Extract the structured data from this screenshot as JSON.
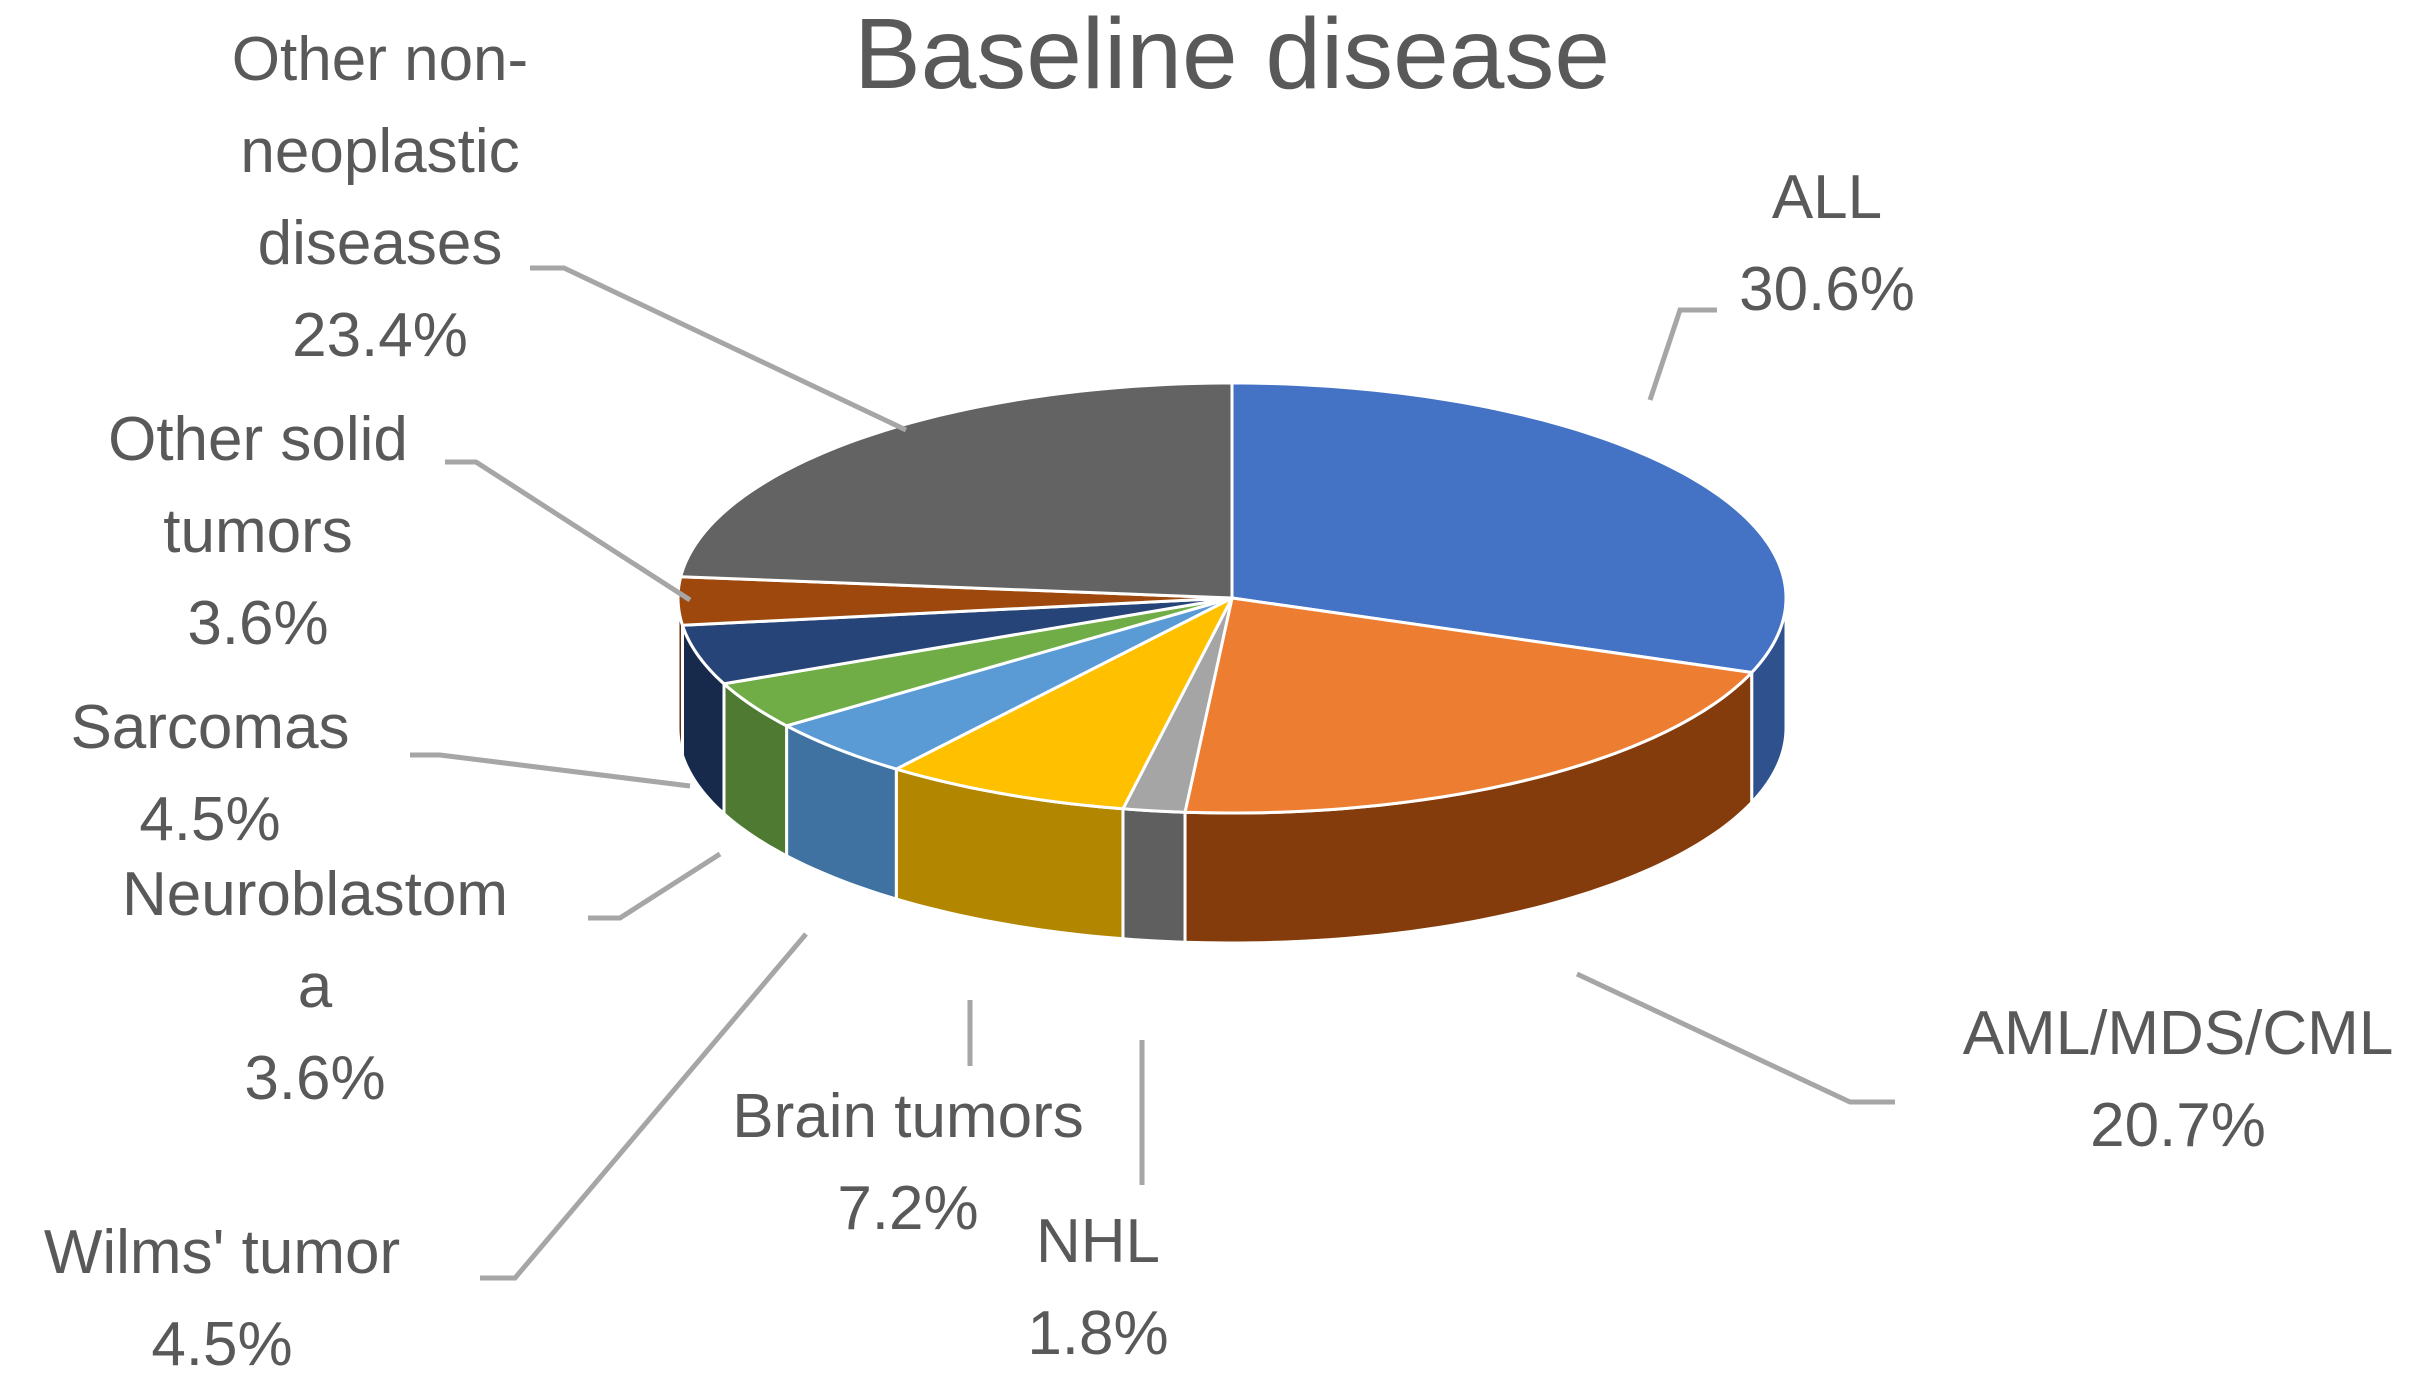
{
  "chart_data": {
    "type": "pie",
    "title": "Baseline disease",
    "slices": [
      {
        "label_lines": [
          "ALL"
        ],
        "percent_label": "30.6%",
        "value": 30.6,
        "color": "#4472C4",
        "side_color": "#2F528F"
      },
      {
        "label_lines": [
          "AML/MDS/CML"
        ],
        "percent_label": "20.7%",
        "value": 20.7,
        "color": "#ED7D31",
        "side_color": "#843C0C"
      },
      {
        "label_lines": [
          "NHL"
        ],
        "percent_label": "1.8%",
        "value": 1.8,
        "color": "#A5A5A5",
        "side_color": "#5F5F5F"
      },
      {
        "label_lines": [
          "Brain tumors"
        ],
        "percent_label": "7.2%",
        "value": 7.2,
        "color": "#FFC000",
        "side_color": "#B38600"
      },
      {
        "label_lines": [
          "Wilms' tumor"
        ],
        "percent_label": "4.5%",
        "value": 4.5,
        "color": "#5B9BD5",
        "side_color": "#3F72A0"
      },
      {
        "label_lines": [
          "Neuroblastom",
          "a"
        ],
        "percent_label": "3.6%",
        "value": 3.6,
        "color": "#70AD47",
        "side_color": "#4E7A31"
      },
      {
        "label_lines": [
          "Sarcomas"
        ],
        "percent_label": "4.5%",
        "value": 4.5,
        "color": "#264478",
        "side_color": "#172A4B"
      },
      {
        "label_lines": [
          "Other solid",
          "tumors"
        ],
        "percent_label": "3.6%",
        "value": 3.6,
        "color": "#9E480E",
        "side_color": "#632D09"
      },
      {
        "label_lines": [
          "Other non-",
          "neoplastic",
          "diseases"
        ],
        "percent_label": "23.4%",
        "value": 23.4,
        "color": "#636363",
        "side_color": "#3C3C3C"
      }
    ],
    "legend": "none",
    "style": "3d-pie"
  }
}
